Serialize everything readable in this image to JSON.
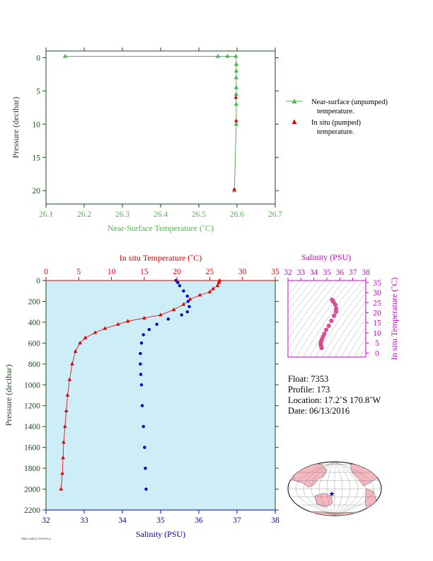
{
  "colors": {
    "near_surface": "#4cb84c",
    "in_situ": "#e00000",
    "salinity": "#0000cc",
    "ts_plot": "#cc00cc",
    "plot_bg": "#cdeef6",
    "frame": "#1e4a1e"
  },
  "chart_data": [
    {
      "type": "line",
      "xlabel": "Near-Surface Temperature (˚C)",
      "ylabel": "Pressure (decibar)",
      "xlim": [
        26.1,
        26.7
      ],
      "ylim": [
        22,
        -1
      ],
      "x_ticks": [
        "26.1",
        "26.2",
        "26.3",
        "26.4",
        "26.5",
        "26.6",
        "26.7"
      ],
      "y_ticks": [
        "0",
        "5",
        "10",
        "15",
        "20"
      ],
      "grid": false,
      "legend_position": "right",
      "series": [
        {
          "name": "Near-surface (unpumped) temperature.",
          "marker": "triangle",
          "points": [
            [
              26.15,
              -0.2
            ],
            [
              26.55,
              -0.2
            ],
            [
              26.575,
              -0.2
            ],
            [
              26.597,
              -0.2
            ],
            [
              26.598,
              1.0
            ],
            [
              26.598,
              2.0
            ],
            [
              26.598,
              3.0
            ],
            [
              26.598,
              4.5
            ],
            [
              26.598,
              5.5
            ],
            [
              26.598,
              7.0
            ],
            [
              26.598,
              10.0
            ],
            [
              26.593,
              20.0
            ]
          ]
        },
        {
          "name": "In situ (pumped) temperature.",
          "marker": "triangle",
          "points": [
            [
              26.597,
              6.0
            ],
            [
              26.598,
              9.5
            ],
            [
              26.593,
              19.8
            ]
          ]
        }
      ]
    },
    {
      "type": "line",
      "top_xlabel": "In situ Temperature (˚C)",
      "top_xlim": [
        0,
        35
      ],
      "top_x_ticks": [
        "0",
        "5",
        "10",
        "15",
        "20",
        "25",
        "30",
        "35"
      ],
      "bottom_xlabel": "Salinity (PSU)",
      "bottom_xlim": [
        32,
        38
      ],
      "bottom_x_ticks": [
        "32",
        "33",
        "34",
        "35",
        "36",
        "37",
        "38"
      ],
      "ylabel": "Pressure (decibar)",
      "ylim": [
        2200,
        0
      ],
      "y_ticks": [
        "0",
        "200",
        "400",
        "600",
        "800",
        "1000",
        "1200",
        "1400",
        "1600",
        "1800",
        "2000",
        "2200"
      ],
      "grid": false,
      "series": [
        {
          "name": "In situ Temperature",
          "marker": "triangle",
          "points": [
            [
              26.5,
              0
            ],
            [
              26.4,
              20
            ],
            [
              26.2,
              50
            ],
            [
              25.5,
              80
            ],
            [
              25.0,
              110
            ],
            [
              23.5,
              140
            ],
            [
              22.0,
              180
            ],
            [
              21.0,
              230
            ],
            [
              19.5,
              280
            ],
            [
              17.5,
              330
            ],
            [
              15.0,
              360
            ],
            [
              12.5,
              390
            ],
            [
              11.0,
              420
            ],
            [
              9.0,
              460
            ],
            [
              7.5,
              500
            ],
            [
              6.0,
              550
            ],
            [
              5.2,
              600
            ],
            [
              4.5,
              680
            ],
            [
              4.0,
              800
            ],
            [
              3.6,
              950
            ],
            [
              3.3,
              1100
            ],
            [
              3.1,
              1250
            ],
            [
              2.9,
              1400
            ],
            [
              2.7,
              1550
            ],
            [
              2.6,
              1700
            ],
            [
              2.5,
              1850
            ],
            [
              2.3,
              2000
            ]
          ]
        },
        {
          "name": "Salinity",
          "marker": "circle",
          "points": [
            [
              35.4,
              0
            ],
            [
              35.45,
              20
            ],
            [
              35.5,
              50
            ],
            [
              35.6,
              100
            ],
            [
              35.7,
              150
            ],
            [
              35.72,
              200
            ],
            [
              35.75,
              250
            ],
            [
              35.7,
              300
            ],
            [
              35.55,
              330
            ],
            [
              35.2,
              370
            ],
            [
              34.9,
              420
            ],
            [
              34.7,
              470
            ],
            [
              34.55,
              520
            ],
            [
              34.5,
              600
            ],
            [
              34.47,
              700
            ],
            [
              34.47,
              800
            ],
            [
              34.48,
              900
            ],
            [
              34.5,
              1000
            ],
            [
              34.52,
              1200
            ],
            [
              34.55,
              1400
            ],
            [
              34.58,
              1600
            ],
            [
              34.6,
              1800
            ],
            [
              34.62,
              2000
            ]
          ]
        }
      ]
    },
    {
      "type": "scatter",
      "xlabel": "Salinity (PSU)",
      "xlim": [
        32,
        38
      ],
      "x_ticks": [
        "32",
        "33",
        "34",
        "35",
        "36",
        "37",
        "38"
      ],
      "ylabel": "In situ Temperature (˚C)",
      "ylim": [
        -2,
        36
      ],
      "y_ticks": [
        "0",
        "5",
        "10",
        "15",
        "20",
        "25",
        "30",
        "35"
      ],
      "grid": false,
      "points": [
        [
          35.4,
          26.4
        ],
        [
          35.5,
          25.5
        ],
        [
          35.65,
          24.0
        ],
        [
          35.72,
          22.0
        ],
        [
          35.7,
          20.5
        ],
        [
          35.55,
          18.5
        ],
        [
          35.35,
          16.0
        ],
        [
          35.15,
          13.5
        ],
        [
          34.95,
          11.5
        ],
        [
          34.8,
          9.5
        ],
        [
          34.7,
          8.0
        ],
        [
          34.6,
          6.5
        ],
        [
          34.55,
          5.5
        ],
        [
          34.52,
          4.5
        ],
        [
          34.55,
          3.5
        ],
        [
          34.6,
          2.5
        ]
      ]
    }
  ],
  "legend": [
    {
      "line1": "Near-surface (unpumped)",
      "line2": "temperature."
    },
    {
      "line1": "In situ (pumped)",
      "line2": "temperature."
    }
  ],
  "meta": {
    "float": "Float:  7353",
    "profile": "Profile:  173",
    "location": "Location:  17.2˚S  170.8˚W",
    "date": "Date:  06/13/2016"
  },
  "map": {
    "marker_lon": -170.8,
    "marker_lat": -17.2
  },
  "footnote": "PMEL/ARGO PROFILE"
}
